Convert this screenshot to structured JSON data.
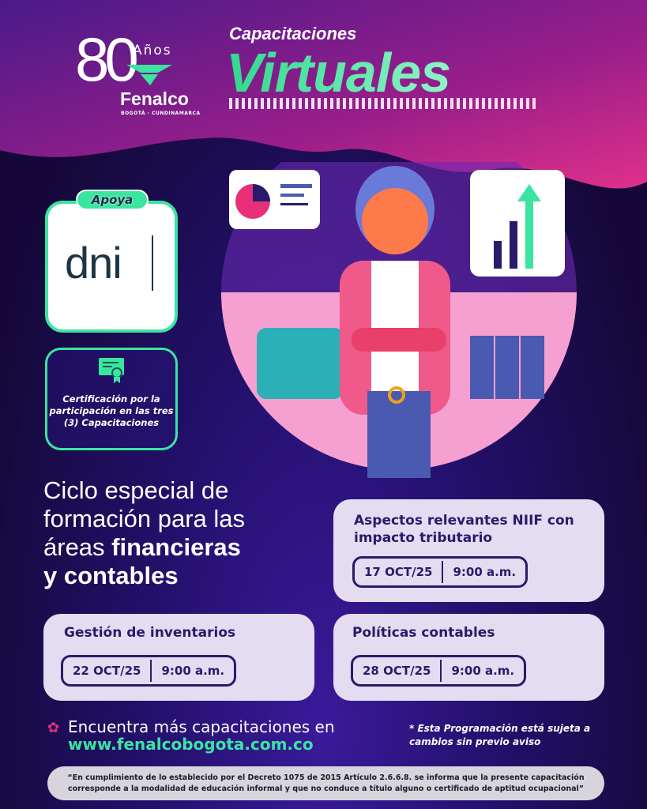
{
  "logo": {
    "number": "80",
    "years": "Años",
    "brand": "Fenalco",
    "region": "BOGOTÁ - CUNDINAMARCA"
  },
  "header": {
    "subtitle": "Capacitaciones",
    "title": "Virtuales"
  },
  "sponsor": {
    "label": "Apoya",
    "name": "dni"
  },
  "certification": {
    "icon": "certificate-icon",
    "text": "Certificación por la participación en las tres (3) Capacitaciones"
  },
  "intro": {
    "line1": "Ciclo especial de",
    "line2": "formación para las",
    "line3_pre": "áreas ",
    "line3_bold": "financieras",
    "line4": "y contables"
  },
  "courses": [
    {
      "title": "Aspectos relevantes NIIF con impacto tributario",
      "date": "17 OCT/25",
      "time": "9:00 a.m."
    },
    {
      "title": "Gestión de inventarios",
      "date": "22 OCT/25",
      "time": "9:00 a.m."
    },
    {
      "title": "Políticas contables",
      "date": "28 OCT/25",
      "time": "9:00 a.m."
    }
  ],
  "footer": {
    "find_more": "Encuentra más capacitaciones en",
    "url": "www.fenalcobogota.com.co",
    "note": "* Esta Programación está sujeta a cambios sin previo aviso",
    "legal": "“En cumplimiento de lo establecido por el Decreto 1075 de 2015 Artículo 2.6.6.8. se informa que la presente capacitación corresponde a la modalidad de educación informal y que no conduce a título alguno o certificado de aptitud ocupacional”"
  },
  "colors": {
    "accent": "#3be5a0",
    "card": "#e4dcf0",
    "text_dark": "#2a1a6a",
    "pink": "#e8307a"
  }
}
